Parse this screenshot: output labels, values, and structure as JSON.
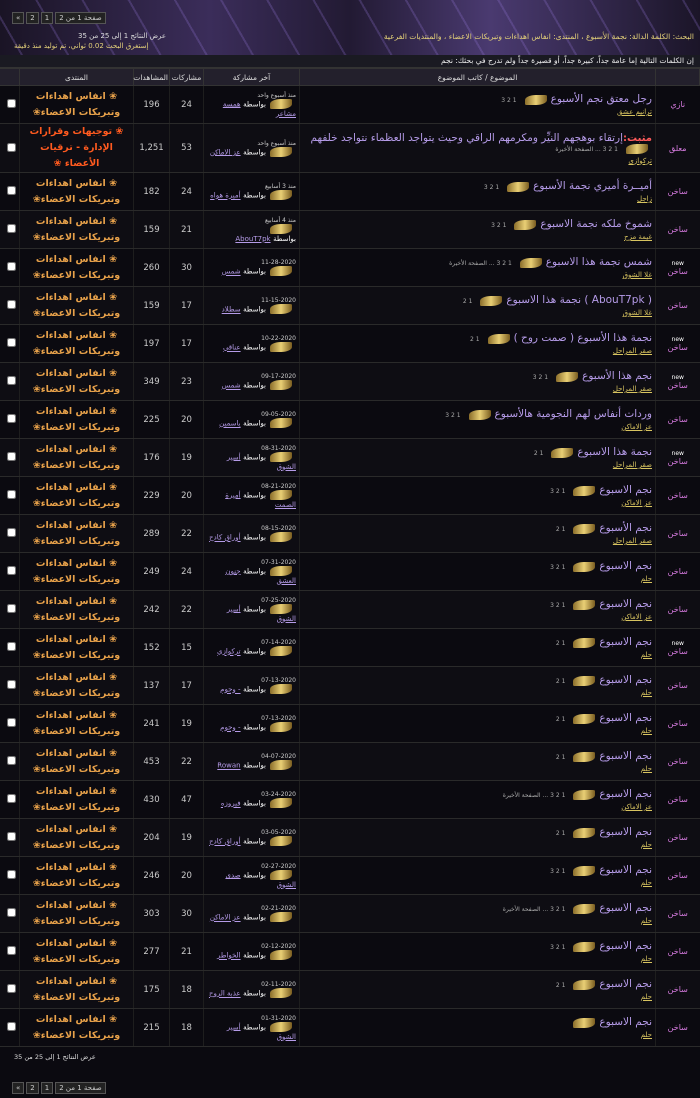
{
  "header": {
    "search_info": "البحث: الكلمة الدالة: نجمة الأسبوع ، المنتدى: انفاس اهداءات وتبريكات الاعضاء ، والمنتديات الفرعية",
    "results": "عرض النتائج 1 إلى 25 من 35",
    "time": "إستغرق البحث 0.02 ثواني، تم توليد منذ دقيقة",
    "pagination": {
      "label": "صفحة 1 من 2",
      "pages": [
        "1",
        "2"
      ],
      "next": "»"
    }
  },
  "notice": "إن الكلمات التالية إما عامة جداً، كبيرة جداً، أو قصيرة جداً ولم تدرج في بحثك: نجم",
  "table": {
    "columns": {
      "topic": "الموضوع / كاتب الموضوع",
      "last_post": "آخر مشاركة",
      "replies": "مشاركات",
      "views": "المشاهدات",
      "forum": "المنتدى"
    },
    "by_label": "بواسطة",
    "rows": [
      {
        "prefix": "نازي",
        "title": "رجل معتق نجم الأسبوع",
        "pages": "1 2 3",
        "author": "ترانيم عشق",
        "last_date": "منذ أسبوع واحد",
        "last_by": "همسة مشاعر",
        "replies": 24,
        "views": 196,
        "forum": "❀ انفاس اهداءات وتبريكات الاعضاء❀"
      },
      {
        "prefix": "معلق",
        "sticky": "مثبت:",
        "title": "إرتقاء بوهجهم النيِّر ومكرمهم الراقي وحيث يتواجد العظماء نتواجد خلفهم",
        "pages": "1 2 3 ... الصفحة الأخيرة",
        "author": "تركوازي",
        "last_date": "منذ أسبوع واحد",
        "last_by": "عز الاماكن",
        "replies": 53,
        "views": "1,251",
        "forum": "❀ توجيهات وقرارات الإدارة - ترقيات الأعضاء ❀"
      },
      {
        "prefix": "ساخن",
        "title": "أميــرة أميري نجمة الأسبوع",
        "pages": "1 2 3",
        "author": "زاجل",
        "last_date": "منذ 3 أسابيع",
        "last_by": "أميرة هواه",
        "replies": 24,
        "views": 182,
        "forum": "❀ انفاس اهداءات وتبريكات الاعضاء❀"
      },
      {
        "prefix": "ساخن",
        "title": "شموخ ملكه نجمة الاسبوع",
        "pages": "1 2 3",
        "author": "غيمة مزح",
        "last_date": "منذ 4 أسابيع",
        "last_by": "AbouT7pk",
        "replies": 21,
        "views": 159,
        "forum": "❀ انفاس اهداءات وتبريكات الاعضاء❀"
      },
      {
        "prefix": "ساخن",
        "badge": "new",
        "title": "شمس نجمة هذا الاسبوع",
        "pages": "1 2 3 ... الصفحة الأخيرة",
        "author": "غلا الشوق",
        "last_date": "11-28-2020",
        "last_by": "شمس",
        "replies": 30,
        "views": 260,
        "forum": "❀ انفاس اهداءات وتبريكات الاعضاء❀"
      },
      {
        "prefix": "ساخن",
        "title": "( AbouT7pk ) نجمة هذا الاسبوع",
        "pages": "1 2",
        "author": "غلا الشوق",
        "last_date": "11-15-2020",
        "last_by": "سطلاد",
        "replies": 17,
        "views": 159,
        "forum": "❀ انفاس اهداءات وتبريكات الاعضاء❀"
      },
      {
        "prefix": "ساخن",
        "badge": "new",
        "title": "نجمة هذا الأسبوع ( صمت روح )",
        "pages": "1 2",
        "author": "صقر المراحل",
        "last_date": "10-22-2020",
        "last_by": "عناقي",
        "replies": 17,
        "views": 197,
        "forum": "❀ انفاس اهداءات وتبريكات الاعضاء❀"
      },
      {
        "prefix": "ساخن",
        "badge": "new",
        "title": "نجم هذا الأسبوع",
        "pages": "1 2 3",
        "author": "صقر المراحل",
        "last_date": "09-17-2020",
        "last_by": "شمس",
        "replies": 23,
        "views": 349,
        "forum": "❀ انفاس اهداءات وتبريكات الاعضاء❀"
      },
      {
        "prefix": "ساخن",
        "title": "وردات أنفاس لهم النجومية هالأسبوع",
        "pages": "1 2 3",
        "author": "عز الاماكن",
        "last_date": "09-05-2020",
        "last_by": "ياسمين",
        "replies": 20,
        "views": 225,
        "forum": "❀ انفاس اهداءات وتبريكات الاعضاء❀"
      },
      {
        "prefix": "ساخن",
        "badge": "new",
        "title": "نجمة هذا الاسبوع",
        "pages": "1 2",
        "author": "صقر المراحل",
        "last_date": "08-31-2020",
        "last_by": "أسير الشوق",
        "replies": 19,
        "views": 176,
        "forum": "❀ انفاس اهداءات وتبريكات الاعضاء❀"
      },
      {
        "prefix": "ساخن",
        "title": "نجم الاسبوع",
        "pages": "1 2 3",
        "author": "عز الاماكن",
        "last_date": "08-21-2020",
        "last_by": "أميرة الصمت",
        "replies": 20,
        "views": 229,
        "forum": "❀ انفاس اهداءات وتبريكات الاعضاء❀"
      },
      {
        "prefix": "ساخن",
        "title": "نجم الأسبوع",
        "pages": "1 2",
        "author": "صقر المراحل",
        "last_date": "08-15-2020",
        "last_by": "أوراق كادح",
        "replies": 22,
        "views": 289,
        "forum": "❀ انفاس اهداءات وتبريكات الاعضاء❀"
      },
      {
        "prefix": "ساخن",
        "title": "نجم الاسبوع",
        "pages": "1 2 3",
        "author": "حلم",
        "last_date": "07-31-2020",
        "last_by": "جنون العشق",
        "replies": 24,
        "views": 249,
        "forum": "❀ انفاس اهداءات وتبريكات الاعضاء❀"
      },
      {
        "prefix": "ساخن",
        "title": "نجم الاسبوع",
        "pages": "1 2 3",
        "author": "عز الاماكن",
        "last_date": "07-25-2020",
        "last_by": "أسير الشوق",
        "replies": 22,
        "views": 242,
        "forum": "❀ انفاس اهداءات وتبريكات الاعضاء❀"
      },
      {
        "prefix": "ساخن",
        "badge": "new",
        "title": "نجم الاسبوع",
        "pages": "1 2",
        "author": "حلم",
        "last_date": "07-14-2020",
        "last_by": "تركوازي",
        "replies": 15,
        "views": 152,
        "forum": "❀ انفاس اهداءات وتبريكات الاعضاء❀"
      },
      {
        "prefix": "ساخن",
        "title": "نجم الاسبوع",
        "pages": "1 2",
        "author": "حلم",
        "last_date": "07-13-2020",
        "last_by": "- وجوم",
        "replies": 17,
        "views": 137,
        "forum": "❀ انفاس اهداءات وتبريكات الاعضاء❀"
      },
      {
        "prefix": "ساخن",
        "title": "نجم الاسبوع",
        "pages": "1 2",
        "author": "حلم",
        "last_date": "07-13-2020",
        "last_by": "- وجوم",
        "replies": 19,
        "views": 241,
        "forum": "❀ انفاس اهداءات وتبريكات الاعضاء❀"
      },
      {
        "prefix": "ساخن",
        "title": "نجم الاسبوع",
        "pages": "1 2",
        "author": "حلم",
        "last_date": "04-07-2020",
        "last_by": "Rowan",
        "replies": 22,
        "views": 453,
        "forum": "❀ انفاس اهداءات وتبريكات الاعضاء❀"
      },
      {
        "prefix": "ساخن",
        "title": "نجم الاسبوع",
        "pages": "1 2 3 ... الصفحة الأخيرة",
        "author": "عز الاماكن",
        "last_date": "03-24-2020",
        "last_by": "فيروزه",
        "replies": 47,
        "views": 430,
        "forum": "❀ انفاس اهداءات وتبريكات الاعضاء❀"
      },
      {
        "prefix": "ساخن",
        "title": "نجم الاسبوع",
        "pages": "1 2",
        "author": "حلم",
        "last_date": "03-05-2020",
        "last_by": "أوراق كادح",
        "replies": 19,
        "views": 204,
        "forum": "❀ انفاس اهداءات وتبريكات الاعضاء❀"
      },
      {
        "prefix": "ساخن",
        "title": "نجم الاسبوع",
        "pages": "1 2 3",
        "author": "حلم",
        "last_date": "02-27-2020",
        "last_by": "صدى الشوق",
        "replies": 20,
        "views": 246,
        "forum": "❀ انفاس اهداءات وتبريكات الاعضاء❀"
      },
      {
        "prefix": "ساخن",
        "title": "نجم الاسبوع",
        "pages": "1 2 3 ... الصفحة الأخيرة",
        "author": "حلم",
        "last_date": "02-21-2020",
        "last_by": "عز الاماكن",
        "replies": 30,
        "views": 303,
        "forum": "❀ انفاس اهداءات وتبريكات الاعضاء❀"
      },
      {
        "prefix": "ساخن",
        "title": "نجم الاسبوع",
        "pages": "1 2 3",
        "author": "حلم",
        "last_date": "02-12-2020",
        "last_by": "الخواطر",
        "replies": 21,
        "views": 277,
        "forum": "❀ انفاس اهداءات وتبريكات الاعضاء❀"
      },
      {
        "prefix": "ساخن",
        "title": "نجم الاسبوع",
        "pages": "1 2",
        "author": "حلم",
        "last_date": "02-11-2020",
        "last_by": "عذبة الروح",
        "replies": 18,
        "views": 175,
        "forum": "❀ انفاس اهداءات وتبريكات الاعضاء❀"
      },
      {
        "prefix": "ساخن",
        "title": "نجم الاسبوع",
        "author": "حلم",
        "last_date": "01-31-2020",
        "last_by": "أسير الشوق",
        "replies": 18,
        "views": 215,
        "forum": "❀ انفاس اهداءات وتبريكات الاعضاء❀"
      }
    ]
  },
  "footer": {
    "results": "عرض النتائج 1 إلى 25 من 35",
    "pagination": {
      "label": "صفحة 1 من 2",
      "pages": [
        "1",
        "2"
      ],
      "next": "»"
    }
  }
}
